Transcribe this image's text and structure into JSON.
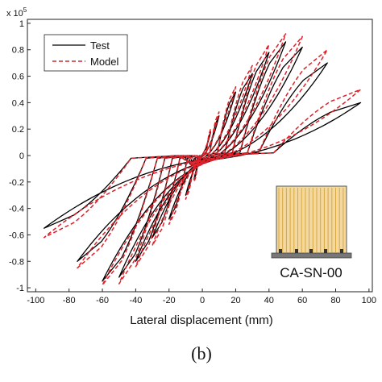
{
  "chart_data": {
    "type": "line",
    "title": "",
    "xlabel": "Lateral displacement (mm)",
    "ylabel": "",
    "y_multiplier_label": "x 10",
    "y_multiplier_exponent": "5",
    "xlim": [
      -105,
      102
    ],
    "ylim": [
      -1.03,
      1.03
    ],
    "x_ticks": [
      -100,
      -80,
      -60,
      -40,
      -20,
      0,
      20,
      40,
      60,
      80,
      100
    ],
    "y_ticks": [
      1,
      0.8,
      0.6,
      0.4,
      0.2,
      0,
      -0.2,
      -0.4,
      -0.6,
      -0.8,
      -1
    ],
    "grid": false,
    "legend_position": "top-left",
    "caption": "(b)",
    "specimen_label": "CA-SN-00",
    "series": [
      {
        "name": "Test",
        "color": "#000000",
        "style": "solid",
        "amplitudes": [
          5,
          10,
          20,
          30,
          40,
          50,
          60,
          75,
          95
        ],
        "peak_pos": [
          0.18,
          0.3,
          0.48,
          0.62,
          0.78,
          0.86,
          0.82,
          0.7,
          0.4
        ],
        "peak_neg": [
          -0.18,
          -0.3,
          -0.48,
          -0.62,
          -0.8,
          -0.92,
          -0.95,
          -0.8,
          -0.55
        ]
      },
      {
        "name": "Model",
        "color": "#e0202a",
        "style": "dashed",
        "amplitudes": [
          5,
          10,
          20,
          30,
          40,
          50,
          60,
          75,
          95
        ],
        "peak_pos": [
          0.2,
          0.33,
          0.52,
          0.68,
          0.84,
          0.92,
          0.9,
          0.8,
          0.5
        ],
        "peak_neg": [
          -0.2,
          -0.33,
          -0.52,
          -0.68,
          -0.84,
          -0.97,
          -0.98,
          -0.85,
          -0.62
        ]
      }
    ]
  }
}
